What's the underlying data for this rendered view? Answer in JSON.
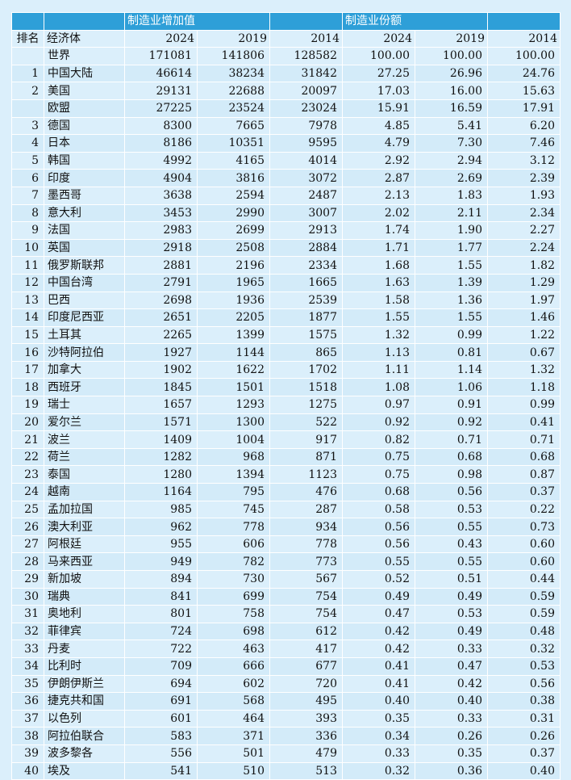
{
  "header": {
    "group1": "制造业增加值",
    "group2": "制造业份额",
    "rank_label": "排名",
    "name_label": "经济体",
    "years": [
      "2024",
      "2019",
      "2014",
      "2024",
      "2019",
      "2014"
    ]
  },
  "rows": [
    {
      "rank": "",
      "name": "世界",
      "v2024": "171081",
      "v2019": "141806",
      "v2014": "128582",
      "s2024": "100.00",
      "s2019": "100.00",
      "s2014": "100.00"
    },
    {
      "rank": "1",
      "name": "中国大陆",
      "v2024": "46614",
      "v2019": "38234",
      "v2014": "31842",
      "s2024": "27.25",
      "s2019": "26.96",
      "s2014": "24.76"
    },
    {
      "rank": "2",
      "name": "美国",
      "v2024": "29131",
      "v2019": "22688",
      "v2014": "20097",
      "s2024": "17.03",
      "s2019": "16.00",
      "s2014": "15.63"
    },
    {
      "rank": "",
      "name": "欧盟",
      "v2024": "27225",
      "v2019": "23524",
      "v2014": "23024",
      "s2024": "15.91",
      "s2019": "16.59",
      "s2014": "17.91"
    },
    {
      "rank": "3",
      "name": "德国",
      "v2024": "8300",
      "v2019": "7665",
      "v2014": "7978",
      "s2024": "4.85",
      "s2019": "5.41",
      "s2014": "6.20"
    },
    {
      "rank": "4",
      "name": "日本",
      "v2024": "8186",
      "v2019": "10351",
      "v2014": "9595",
      "s2024": "4.79",
      "s2019": "7.30",
      "s2014": "7.46"
    },
    {
      "rank": "5",
      "name": "韩国",
      "v2024": "4992",
      "v2019": "4165",
      "v2014": "4014",
      "s2024": "2.92",
      "s2019": "2.94",
      "s2014": "3.12"
    },
    {
      "rank": "6",
      "name": "印度",
      "v2024": "4904",
      "v2019": "3816",
      "v2014": "3072",
      "s2024": "2.87",
      "s2019": "2.69",
      "s2014": "2.39"
    },
    {
      "rank": "7",
      "name": "墨西哥",
      "v2024": "3638",
      "v2019": "2594",
      "v2014": "2487",
      "s2024": "2.13",
      "s2019": "1.83",
      "s2014": "1.93"
    },
    {
      "rank": "8",
      "name": "意大利",
      "v2024": "3453",
      "v2019": "2990",
      "v2014": "3007",
      "s2024": "2.02",
      "s2019": "2.11",
      "s2014": "2.34"
    },
    {
      "rank": "9",
      "name": "法国",
      "v2024": "2983",
      "v2019": "2699",
      "v2014": "2913",
      "s2024": "1.74",
      "s2019": "1.90",
      "s2014": "2.27"
    },
    {
      "rank": "10",
      "name": "英国",
      "v2024": "2918",
      "v2019": "2508",
      "v2014": "2884",
      "s2024": "1.71",
      "s2019": "1.77",
      "s2014": "2.24"
    },
    {
      "rank": "11",
      "name": "俄罗斯联邦",
      "v2024": "2881",
      "v2019": "2196",
      "v2014": "2334",
      "s2024": "1.68",
      "s2019": "1.55",
      "s2014": "1.82"
    },
    {
      "rank": "12",
      "name": "中国台湾",
      "v2024": "2791",
      "v2019": "1965",
      "v2014": "1665",
      "s2024": "1.63",
      "s2019": "1.39",
      "s2014": "1.29"
    },
    {
      "rank": "13",
      "name": "巴西",
      "v2024": "2698",
      "v2019": "1936",
      "v2014": "2539",
      "s2024": "1.58",
      "s2019": "1.36",
      "s2014": "1.97"
    },
    {
      "rank": "14",
      "name": "印度尼西亚",
      "v2024": "2651",
      "v2019": "2205",
      "v2014": "1877",
      "s2024": "1.55",
      "s2019": "1.55",
      "s2014": "1.46"
    },
    {
      "rank": "15",
      "name": "土耳其",
      "v2024": "2265",
      "v2019": "1399",
      "v2014": "1575",
      "s2024": "1.32",
      "s2019": "0.99",
      "s2014": "1.22"
    },
    {
      "rank": "16",
      "name": "沙特阿拉伯",
      "v2024": "1927",
      "v2019": "1144",
      "v2014": "865",
      "s2024": "1.13",
      "s2019": "0.81",
      "s2014": "0.67"
    },
    {
      "rank": "17",
      "name": "加拿大",
      "v2024": "1902",
      "v2019": "1622",
      "v2014": "1702",
      "s2024": "1.11",
      "s2019": "1.14",
      "s2014": "1.32"
    },
    {
      "rank": "18",
      "name": "西班牙",
      "v2024": "1845",
      "v2019": "1501",
      "v2014": "1518",
      "s2024": "1.08",
      "s2019": "1.06",
      "s2014": "1.18"
    },
    {
      "rank": "19",
      "name": "瑞士",
      "v2024": "1657",
      "v2019": "1293",
      "v2014": "1275",
      "s2024": "0.97",
      "s2019": "0.91",
      "s2014": "0.99"
    },
    {
      "rank": "20",
      "name": "爱尔兰",
      "v2024": "1571",
      "v2019": "1300",
      "v2014": "522",
      "s2024": "0.92",
      "s2019": "0.92",
      "s2014": "0.41"
    },
    {
      "rank": "21",
      "name": "波兰",
      "v2024": "1409",
      "v2019": "1004",
      "v2014": "917",
      "s2024": "0.82",
      "s2019": "0.71",
      "s2014": "0.71"
    },
    {
      "rank": "22",
      "name": "荷兰",
      "v2024": "1282",
      "v2019": "968",
      "v2014": "871",
      "s2024": "0.75",
      "s2019": "0.68",
      "s2014": "0.68"
    },
    {
      "rank": "23",
      "name": "泰国",
      "v2024": "1280",
      "v2019": "1394",
      "v2014": "1123",
      "s2024": "0.75",
      "s2019": "0.98",
      "s2014": "0.87"
    },
    {
      "rank": "24",
      "name": "越南",
      "v2024": "1164",
      "v2019": "795",
      "v2014": "476",
      "s2024": "0.68",
      "s2019": "0.56",
      "s2014": "0.37"
    },
    {
      "rank": "25",
      "name": "孟加拉国",
      "v2024": "985",
      "v2019": "745",
      "v2014": "287",
      "s2024": "0.58",
      "s2019": "0.53",
      "s2014": "0.22"
    },
    {
      "rank": "26",
      "name": "澳大利亚",
      "v2024": "962",
      "v2019": "778",
      "v2014": "934",
      "s2024": "0.56",
      "s2019": "0.55",
      "s2014": "0.73"
    },
    {
      "rank": "27",
      "name": "阿根廷",
      "v2024": "955",
      "v2019": "606",
      "v2014": "778",
      "s2024": "0.56",
      "s2019": "0.43",
      "s2014": "0.60"
    },
    {
      "rank": "28",
      "name": "马来西亚",
      "v2024": "949",
      "v2019": "782",
      "v2014": "773",
      "s2024": "0.55",
      "s2019": "0.55",
      "s2014": "0.60"
    },
    {
      "rank": "29",
      "name": "新加坡",
      "v2024": "894",
      "v2019": "730",
      "v2014": "567",
      "s2024": "0.52",
      "s2019": "0.51",
      "s2014": "0.44"
    },
    {
      "rank": "30",
      "name": "瑞典",
      "v2024": "841",
      "v2019": "699",
      "v2014": "754",
      "s2024": "0.49",
      "s2019": "0.49",
      "s2014": "0.59"
    },
    {
      "rank": "31",
      "name": "奥地利",
      "v2024": "801",
      "v2019": "758",
      "v2014": "754",
      "s2024": "0.47",
      "s2019": "0.53",
      "s2014": "0.59"
    },
    {
      "rank": "32",
      "name": "菲律宾",
      "v2024": "724",
      "v2019": "698",
      "v2014": "612",
      "s2024": "0.42",
      "s2019": "0.49",
      "s2014": "0.48"
    },
    {
      "rank": "33",
      "name": "丹麦",
      "v2024": "722",
      "v2019": "463",
      "v2014": "417",
      "s2024": "0.42",
      "s2019": "0.33",
      "s2014": "0.32"
    },
    {
      "rank": "34",
      "name": "比利时",
      "v2024": "709",
      "v2019": "666",
      "v2014": "677",
      "s2024": "0.41",
      "s2019": "0.47",
      "s2014": "0.53"
    },
    {
      "rank": "35",
      "name": "伊朗伊斯兰",
      "v2024": "694",
      "v2019": "602",
      "v2014": "720",
      "s2024": "0.41",
      "s2019": "0.42",
      "s2014": "0.56"
    },
    {
      "rank": "36",
      "name": "捷克共和国",
      "v2024": "691",
      "v2019": "568",
      "v2014": "495",
      "s2024": "0.40",
      "s2019": "0.40",
      "s2014": "0.38"
    },
    {
      "rank": "37",
      "name": "以色列",
      "v2024": "601",
      "v2019": "464",
      "v2014": "393",
      "s2024": "0.35",
      "s2019": "0.33",
      "s2014": "0.31"
    },
    {
      "rank": "38",
      "name": "阿拉伯联合",
      "v2024": "583",
      "v2019": "371",
      "v2014": "336",
      "s2024": "0.34",
      "s2019": "0.26",
      "s2014": "0.26"
    },
    {
      "rank": "39",
      "name": "波多黎各",
      "v2024": "556",
      "v2019": "501",
      "v2014": "479",
      "s2024": "0.33",
      "s2019": "0.35",
      "s2014": "0.37"
    },
    {
      "rank": "40",
      "name": "埃及",
      "v2024": "541",
      "v2019": "510",
      "v2014": "513",
      "s2024": "0.32",
      "s2019": "0.36",
      "s2014": "0.40"
    }
  ]
}
